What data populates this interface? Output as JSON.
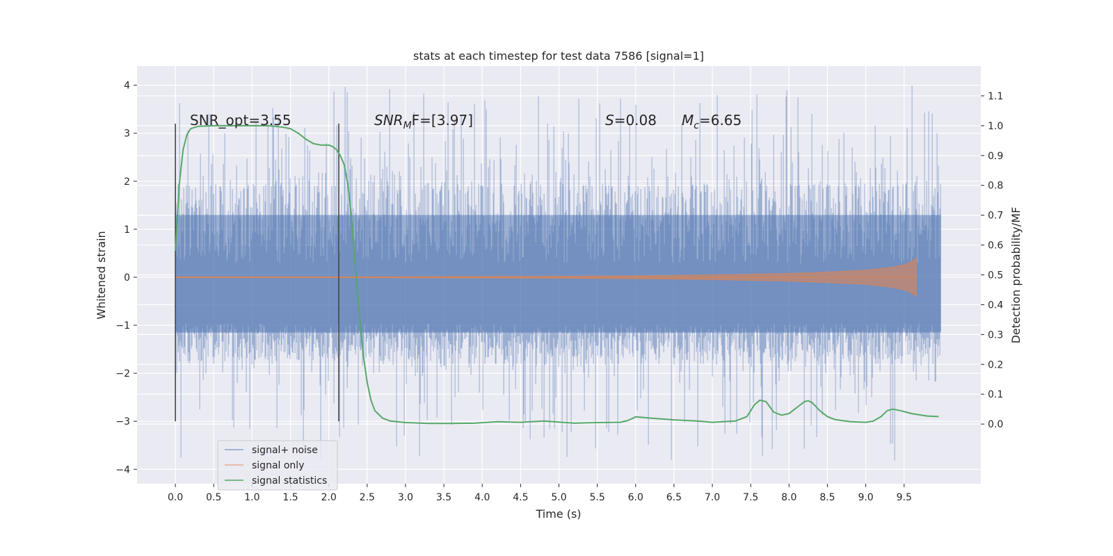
{
  "chart_data": {
    "type": "line",
    "title": "stats at each timestep for test data 7586 [signal=1]",
    "xlabel": "Time (s)",
    "ylabel_left": "Whitened strain",
    "ylabel_right": "Detection probability/MF",
    "xlim": [
      -0.5,
      10.5
    ],
    "ylim_left": [
      -4.3,
      4.4
    ],
    "ylim_right": [
      -0.2,
      1.2
    ],
    "x_ticks": [
      "0.0",
      "0.5",
      "1.0",
      "1.5",
      "2.0",
      "2.5",
      "3.0",
      "3.5",
      "4.0",
      "4.5",
      "5.0",
      "5.5",
      "6.0",
      "6.5",
      "7.0",
      "7.5",
      "8.0",
      "8.5",
      "9.0",
      "9.5"
    ],
    "y_ticks_left": [
      "−4",
      "−3",
      "−2",
      "−1",
      "0",
      "1",
      "2",
      "3",
      "4"
    ],
    "y_ticks_right": [
      "0.0",
      "0.1",
      "0.2",
      "0.3",
      "0.4",
      "0.5",
      "0.6",
      "0.7",
      "0.8",
      "0.9",
      "1.0",
      "1.1"
    ],
    "grid": true,
    "legend_position": "bottom-left",
    "background_color": "#eaeaf2",
    "annotations": {
      "snr_opt": "SNR_opt=3.55",
      "snr_mf_base": "SNR",
      "snr_mf_sub": "M",
      "snr_mf_rest": "F=[3.97]",
      "s_sym": "S",
      "s_val": "=0.08",
      "mc_base": "M",
      "mc_sub": "c",
      "mc_val": "=6.65"
    },
    "window_markers": {
      "x": [
        0.0,
        2.13
      ],
      "y_range": [
        -3.0,
        3.2
      ]
    },
    "series": [
      {
        "name": "signal+ noise",
        "axis": "left",
        "color": "#4c72b0",
        "x_range": [
          0.0,
          9.98
        ],
        "core_band": [
          -1.75,
          1.95
        ],
        "peak_range": [
          -3.85,
          4.05
        ]
      },
      {
        "name": "signal only",
        "axis": "left",
        "color": "#dd8452",
        "x_range": [
          0.0,
          9.66
        ],
        "envelope_x": [
          0.0,
          2.0,
          4.0,
          5.0,
          6.0,
          7.0,
          8.0,
          8.5,
          9.0,
          9.3,
          9.5,
          9.6,
          9.66
        ],
        "envelope_amp": [
          0.01,
          0.01,
          0.015,
          0.02,
          0.03,
          0.05,
          0.08,
          0.11,
          0.15,
          0.2,
          0.26,
          0.33,
          0.4
        ]
      },
      {
        "name": "signal statistics",
        "axis": "right",
        "color": "#55a868",
        "x": [
          0.0,
          0.05,
          0.1,
          0.15,
          0.2,
          0.3,
          0.5,
          0.8,
          1.0,
          1.2,
          1.3,
          1.4,
          1.5,
          1.6,
          1.7,
          1.8,
          1.9,
          2.0,
          2.05,
          2.1,
          2.15,
          2.2,
          2.25,
          2.3,
          2.35,
          2.4,
          2.45,
          2.5,
          2.55,
          2.6,
          2.7,
          2.8,
          3.0,
          3.3,
          3.6,
          3.9,
          4.2,
          4.5,
          4.8,
          5.2,
          5.5,
          5.8,
          5.9,
          6.0,
          6.2,
          6.5,
          6.8,
          7.0,
          7.3,
          7.45,
          7.55,
          7.62,
          7.7,
          7.8,
          7.9,
          8.0,
          8.1,
          8.2,
          8.25,
          8.3,
          8.4,
          8.5,
          8.6,
          8.8,
          9.0,
          9.1,
          9.2,
          9.28,
          9.35,
          9.45,
          9.6,
          9.8,
          9.95
        ],
        "y": [
          0.58,
          0.8,
          0.92,
          0.97,
          0.99,
          0.998,
          1.0,
          1.0,
          1.0,
          1.0,
          0.998,
          0.995,
          0.99,
          0.975,
          0.955,
          0.94,
          0.935,
          0.935,
          0.93,
          0.92,
          0.9,
          0.87,
          0.8,
          0.68,
          0.52,
          0.36,
          0.23,
          0.14,
          0.08,
          0.045,
          0.02,
          0.01,
          0.005,
          0.002,
          0.002,
          0.003,
          0.008,
          0.006,
          0.01,
          0.003,
          0.005,
          0.006,
          0.012,
          0.024,
          0.02,
          0.014,
          0.01,
          0.006,
          0.01,
          0.025,
          0.065,
          0.08,
          0.075,
          0.04,
          0.03,
          0.035,
          0.055,
          0.075,
          0.078,
          0.072,
          0.045,
          0.025,
          0.015,
          0.008,
          0.006,
          0.01,
          0.025,
          0.045,
          0.05,
          0.045,
          0.035,
          0.027,
          0.025
        ]
      }
    ]
  }
}
